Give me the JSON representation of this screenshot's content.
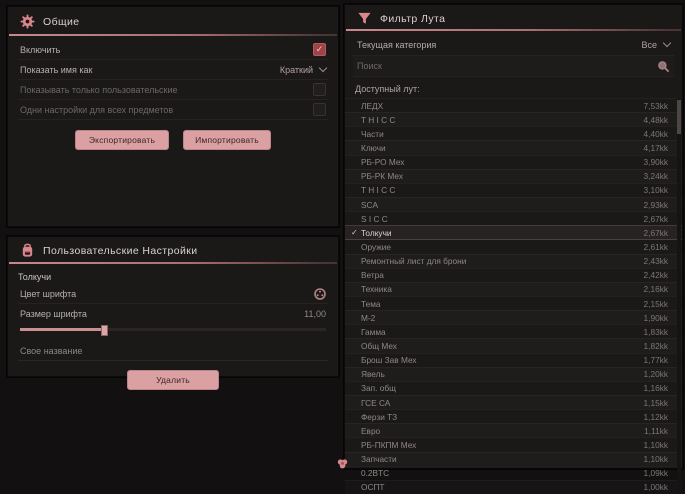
{
  "colors": {
    "accent_pink": "#d9a0a2",
    "header_underline": "#c8898d",
    "card_bg": "#1b1818",
    "page_bg": "#121010",
    "checkbox_checked": "#a04348"
  },
  "general_panel": {
    "title": "Общие",
    "icon": "gear-icon",
    "rows": [
      {
        "label": "Включить",
        "control": "checkbox",
        "checked": true
      },
      {
        "label": "Показать имя как",
        "control": "select",
        "value": "Краткий"
      },
      {
        "label": "Показывать только пользовательские",
        "control": "checkbox",
        "checked": false
      },
      {
        "label": "Одни настройки для всех предметов",
        "control": "checkbox",
        "checked": false
      }
    ],
    "export_label": "Экспортировать",
    "import_label": "Импортировать"
  },
  "user_settings_panel": {
    "title": "Пользовательские Настройки",
    "icon": "backpack-icon",
    "item_name": "Толкучи",
    "font_color_label": "Цвет шрифта",
    "font_size_label": "Размер шрифта",
    "font_size_value": "11,00",
    "font_size_percent": 27,
    "custom_name_placeholder": "Свое название",
    "delete_label": "Удалить"
  },
  "loot_panel": {
    "title": "Фильтр Лута",
    "icon": "funnel-icon",
    "category_label": "Текущая категория",
    "category_value": "Все",
    "search_placeholder": "Поиск",
    "list_label": "Доступный лут:",
    "items": [
      {
        "name": "ЛЕДХ",
        "value": "7,53kk",
        "selected": false
      },
      {
        "name": "T H I C C",
        "value": "4,48kk",
        "selected": false
      },
      {
        "name": "Части",
        "value": "4,40kk",
        "selected": false
      },
      {
        "name": "Ключи",
        "value": "4,17kk",
        "selected": false
      },
      {
        "name": "РБ-РО Мех",
        "value": "3,90kk",
        "selected": false
      },
      {
        "name": "РБ-РК Мех",
        "value": "3,24kk",
        "selected": false
      },
      {
        "name": "T H I C C",
        "value": "3,10kk",
        "selected": false
      },
      {
        "name": "SCA",
        "value": "2,93kk",
        "selected": false
      },
      {
        "name": "S I C C",
        "value": "2,67kk",
        "selected": false
      },
      {
        "name": "Толкучи",
        "value": "2,67kk",
        "selected": true
      },
      {
        "name": "Оружие",
        "value": "2,61kk",
        "selected": false
      },
      {
        "name": "Ремонтный лист для брони",
        "value": "2,43kk",
        "selected": false
      },
      {
        "name": "Ветра",
        "value": "2,42kk",
        "selected": false
      },
      {
        "name": "Техника",
        "value": "2,16kk",
        "selected": false
      },
      {
        "name": "Тема",
        "value": "2,15kk",
        "selected": false
      },
      {
        "name": "М-2",
        "value": "1,90kk",
        "selected": false
      },
      {
        "name": "Гамма",
        "value": "1,83kk",
        "selected": false
      },
      {
        "name": "Общ Мех",
        "value": "1,82kk",
        "selected": false
      },
      {
        "name": "Брош Зав Мех",
        "value": "1,77kk",
        "selected": false
      },
      {
        "name": "Явель",
        "value": "1,20kk",
        "selected": false
      },
      {
        "name": "Зап. общ",
        "value": "1,16kk",
        "selected": false
      },
      {
        "name": "ГСЕ СА",
        "value": "1,15kk",
        "selected": false
      },
      {
        "name": "Ферзи ТЗ",
        "value": "1,12kk",
        "selected": false
      },
      {
        "name": "Евро",
        "value": "1,11kk",
        "selected": false
      },
      {
        "name": "РБ-ПКПМ Мех",
        "value": "1,10kk",
        "selected": false
      },
      {
        "name": "Запчасти",
        "value": "1,10kk",
        "selected": false
      },
      {
        "name": "0.2BTC",
        "value": "1,09kk",
        "selected": false
      },
      {
        "name": "ОСПТ",
        "value": "1,00kk",
        "selected": false
      }
    ]
  }
}
